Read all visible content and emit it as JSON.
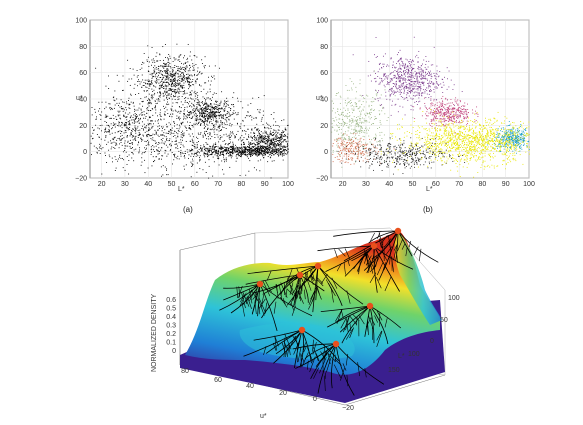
{
  "panel_a": {
    "caption": "(a)",
    "xlabel": "L*",
    "ylabel": "u*",
    "x_ticks": [
      "20",
      "30",
      "40",
      "50",
      "60",
      "70",
      "80",
      "90",
      "100"
    ],
    "y_ticks": [
      "100",
      "80",
      "60",
      "40",
      "20",
      "0",
      "−20"
    ]
  },
  "panel_b": {
    "caption": "(b)",
    "xlabel": "L*",
    "ylabel": "u*",
    "x_ticks": [
      "20",
      "30",
      "40",
      "50",
      "60",
      "70",
      "80",
      "90",
      "100"
    ],
    "y_ticks": [
      "100",
      "80",
      "60",
      "40",
      "20",
      "0",
      "−20"
    ]
  },
  "panel_c": {
    "zlabel": "NORMALIZED DENSITY",
    "z_ticks": [
      "0.6",
      "0.5",
      "0.4",
      "0.3",
      "0.2",
      "0.1",
      "0"
    ],
    "u_label": "u*",
    "u_ticks": [
      "80",
      "60",
      "40",
      "20",
      "0",
      "−20"
    ],
    "l_label": "L*",
    "l_ticks": [
      "100",
      "50",
      "0",
      "100",
      "150"
    ]
  },
  "chart_data": [
    {
      "type": "scatter",
      "title": "",
      "xlabel": "L*",
      "ylabel": "u*",
      "xlim": [
        15,
        100
      ],
      "ylim": [
        -20,
        100
      ],
      "grid": true,
      "clusters": [
        {
          "color": "#000000",
          "center": [
            50,
            55
          ],
          "spread": [
            7,
            9
          ],
          "n": 650
        },
        {
          "color": "#000000",
          "center": [
            66,
            30
          ],
          "spread": [
            5,
            5
          ],
          "n": 380
        },
        {
          "color": "#000000",
          "center": [
            92,
            8
          ],
          "spread": [
            5,
            5
          ],
          "n": 380
        },
        {
          "color": "#000000",
          "center": [
            82,
            1
          ],
          "spread": [
            12,
            2
          ],
          "n": 700
        },
        {
          "color": "#000000",
          "center": [
            33,
            22
          ],
          "spread": [
            10,
            14
          ],
          "n": 450
        },
        {
          "color": "#000000",
          "center": [
            58,
            12
          ],
          "spread": [
            22,
            14
          ],
          "n": 900
        }
      ]
    },
    {
      "type": "scatter",
      "title": "",
      "xlabel": "L*",
      "ylabel": "u*",
      "xlim": [
        15,
        100
      ],
      "ylim": [
        -20,
        100
      ],
      "grid": true,
      "clusters": [
        {
          "color": "#7a3a8c",
          "center": [
            48,
            55
          ],
          "spread": [
            7,
            9
          ],
          "n": 650
        },
        {
          "color": "#c0407a",
          "center": [
            65,
            30
          ],
          "spread": [
            5,
            5
          ],
          "n": 380
        },
        {
          "color": "#1e9fc6",
          "center": [
            93,
            10
          ],
          "spread": [
            4,
            4
          ],
          "n": 380
        },
        {
          "color": "#e8e600",
          "center": [
            75,
            8
          ],
          "spread": [
            14,
            8
          ],
          "n": 1300
        },
        {
          "color": "#9ab585",
          "center": [
            25,
            22
          ],
          "spread": [
            7,
            12
          ],
          "n": 420
        },
        {
          "color": "#d06b4a",
          "center": [
            24,
            2
          ],
          "spread": [
            5,
            5
          ],
          "n": 220
        },
        {
          "color": "#222222",
          "center": [
            45,
            -2
          ],
          "spread": [
            10,
            5
          ],
          "n": 380
        }
      ]
    },
    {
      "type": "surface",
      "title": "",
      "xlabel": "u*",
      "ylabel": "L*",
      "zlabel": "NORMALIZED DENSITY",
      "xlim": [
        -20,
        80
      ],
      "ylim": [
        0,
        150
      ],
      "zlim": [
        0,
        0.6
      ],
      "colormap": [
        "#3a1f8f",
        "#1f7fd6",
        "#2ec3d8",
        "#6fd36a",
        "#f2e02a",
        "#f07a1a",
        "#d8321e"
      ],
      "modes_color": "#e8501c",
      "mode_count": 8
    }
  ]
}
